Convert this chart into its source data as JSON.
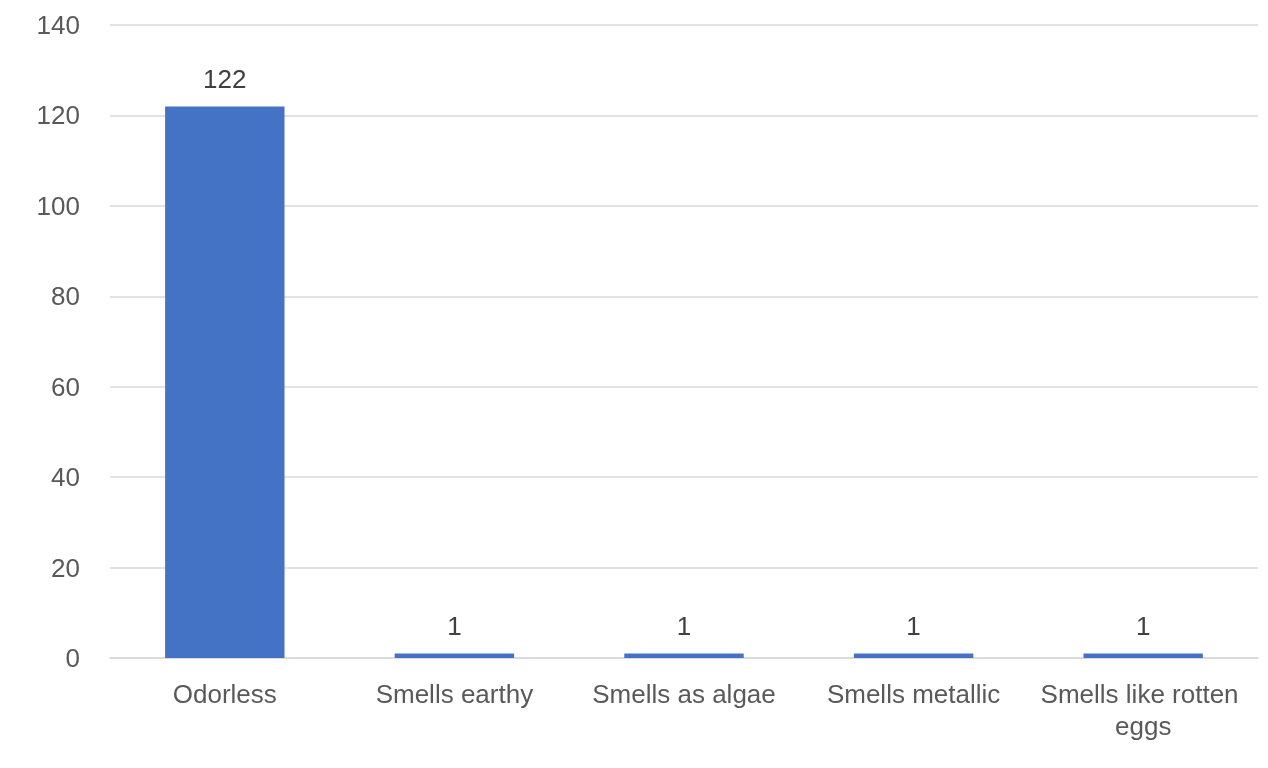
{
  "chart_data": {
    "type": "bar",
    "categories": [
      "Odorless",
      "Smells earthy",
      "Smells as algae",
      "Smells metallic",
      "Smells like rotten eggs"
    ],
    "values": [
      122,
      1,
      1,
      1,
      1
    ],
    "color": "#4472c4",
    "ylim": [
      0,
      140
    ],
    "yticks": [
      0,
      20,
      40,
      60,
      80,
      100,
      120,
      140
    ],
    "grid": "y",
    "data_labels": true
  }
}
